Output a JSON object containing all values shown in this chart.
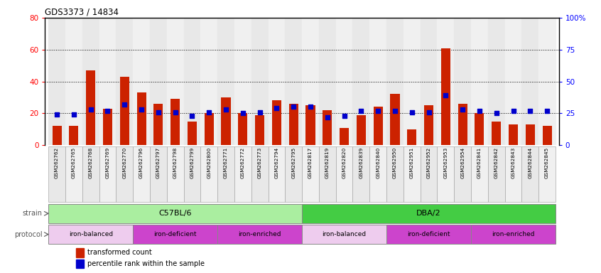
{
  "title": "GDS3373 / 14834",
  "samples": [
    "GSM262762",
    "GSM262765",
    "GSM262768",
    "GSM262769",
    "GSM262770",
    "GSM262796",
    "GSM262797",
    "GSM262798",
    "GSM262799",
    "GSM262800",
    "GSM262771",
    "GSM262772",
    "GSM262773",
    "GSM262794",
    "GSM262795",
    "GSM262817",
    "GSM262819",
    "GSM262820",
    "GSM262839",
    "GSM262840",
    "GSM262950",
    "GSM262951",
    "GSM262952",
    "GSM262953",
    "GSM262954",
    "GSM262841",
    "GSM262842",
    "GSM262843",
    "GSM262844",
    "GSM262845"
  ],
  "red_values": [
    12,
    12,
    47,
    23,
    43,
    33,
    26,
    29,
    15,
    20,
    30,
    20,
    19,
    28,
    26,
    25,
    22,
    11,
    19,
    24,
    32,
    10,
    25,
    61,
    26,
    20,
    15,
    13,
    13,
    12
  ],
  "blue_values": [
    24,
    24,
    28,
    27,
    32,
    28,
    26,
    26,
    23,
    26,
    28,
    25,
    26,
    29,
    30,
    30,
    22,
    23,
    27,
    27,
    27,
    26,
    26,
    39,
    28,
    27,
    25,
    27,
    27,
    27
  ],
  "strain_groups": [
    {
      "label": "C57BL/6",
      "start": 0,
      "end": 15,
      "color": "#AAEEA0"
    },
    {
      "label": "DBA/2",
      "start": 15,
      "end": 30,
      "color": "#44CC44"
    }
  ],
  "protocol_groups": [
    {
      "label": "iron-balanced",
      "start": 0,
      "end": 5,
      "color": "#EECCEE"
    },
    {
      "label": "iron-deficient",
      "start": 5,
      "end": 10,
      "color": "#CC44CC"
    },
    {
      "label": "iron-enriched",
      "start": 10,
      "end": 15,
      "color": "#CC44CC"
    },
    {
      "label": "iron-balanced",
      "start": 15,
      "end": 20,
      "color": "#EECCEE"
    },
    {
      "label": "iron-deficient",
      "start": 20,
      "end": 25,
      "color": "#CC44CC"
    },
    {
      "label": "iron-enriched",
      "start": 25,
      "end": 30,
      "color": "#CC44CC"
    }
  ],
  "bar_color": "#CC2200",
  "dot_color": "#0000CC",
  "col_bg_even": "#E8E8E8",
  "col_bg_odd": "#F0F0F0",
  "plot_bg": "#FFFFFF",
  "ylim_left": [
    0,
    80
  ],
  "ylim_right": [
    0,
    100
  ],
  "yticks_left": [
    0,
    20,
    40,
    60,
    80
  ],
  "yticks_right": [
    0,
    25,
    50,
    75,
    100
  ],
  "ytick_labels_right": [
    "0",
    "25",
    "50",
    "75",
    "100%"
  ],
  "grid_yticks": [
    20,
    40,
    60
  ],
  "legend_red": "transformed count",
  "legend_blue": "percentile rank within the sample"
}
